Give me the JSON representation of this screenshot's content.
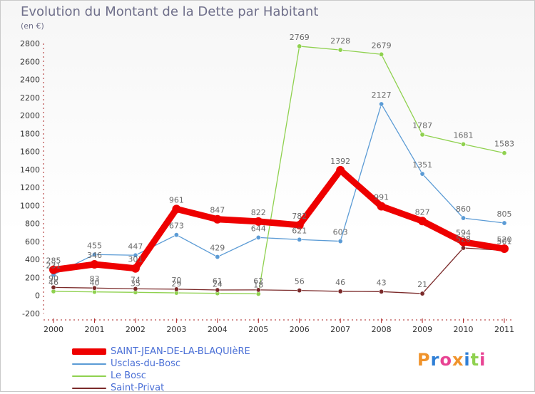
{
  "header": {
    "title": "Evolution du Montant de la Dette par Habitant",
    "subtitle": "(en €)"
  },
  "logo": {
    "text": "Proxiti"
  },
  "chart_data": {
    "type": "line",
    "title": "Evolution du Montant de la Dette par Habitant",
    "ylabel": "(en €)",
    "xlabel": "",
    "ylim": [
      -200,
      2800
    ],
    "yticks": [
      -200,
      0,
      200,
      400,
      600,
      800,
      1000,
      1200,
      1400,
      1600,
      1800,
      2000,
      2200,
      2400,
      2600,
      2800
    ],
    "categories": [
      "2000",
      "2001",
      "2002",
      "2003",
      "2004",
      "2005",
      "2006",
      "2007",
      "2008",
      "2009",
      "2010",
      "2011"
    ],
    "grid": false,
    "legend": "bottom-left",
    "series": [
      {
        "name": "SAINT-JEAN-DE-LA-BLAQUIèRE",
        "color": "#ee0000",
        "values": [
          285,
          346,
          301,
          961,
          847,
          822,
          782,
          1392,
          991,
          827,
          594,
          520
        ],
        "labels": [
          "285",
          "346",
          "301",
          "961",
          "847",
          "822",
          "782",
          "1392",
          "991",
          "827",
          "594",
          "520"
        ]
      },
      {
        "name": "Usclas-du-Bosc",
        "color": "#5b9bd5",
        "values": [
          231,
          455,
          447,
          673,
          429,
          644,
          621,
          603,
          2127,
          1351,
          860,
          805
        ],
        "labels": [
          "231",
          "455",
          "447",
          "673",
          "429",
          "644",
          "621",
          "603",
          "2127",
          "1351",
          "860",
          "805"
        ]
      },
      {
        "name": "Le Bosc",
        "color": "#8fd14f",
        "values": [
          46,
          40,
          35,
          29,
          24,
          18,
          2769,
          2728,
          2679,
          1787,
          1681,
          1583
        ],
        "labels": [
          "46",
          "40",
          "35",
          "29",
          "24",
          "18",
          "2769",
          "2728",
          "2679",
          "1787",
          "1681",
          "1583"
        ]
      },
      {
        "name": "Saint-Privat",
        "color": "#7b2a2a",
        "values": [
          90,
          83,
          74,
          70,
          61,
          62,
          56,
          46,
          43,
          21,
          528,
          501
        ],
        "labels": [
          "90",
          "83",
          "74",
          "70",
          "61",
          "62",
          "56",
          "46",
          "43",
          "21",
          "528",
          "501"
        ]
      }
    ]
  }
}
